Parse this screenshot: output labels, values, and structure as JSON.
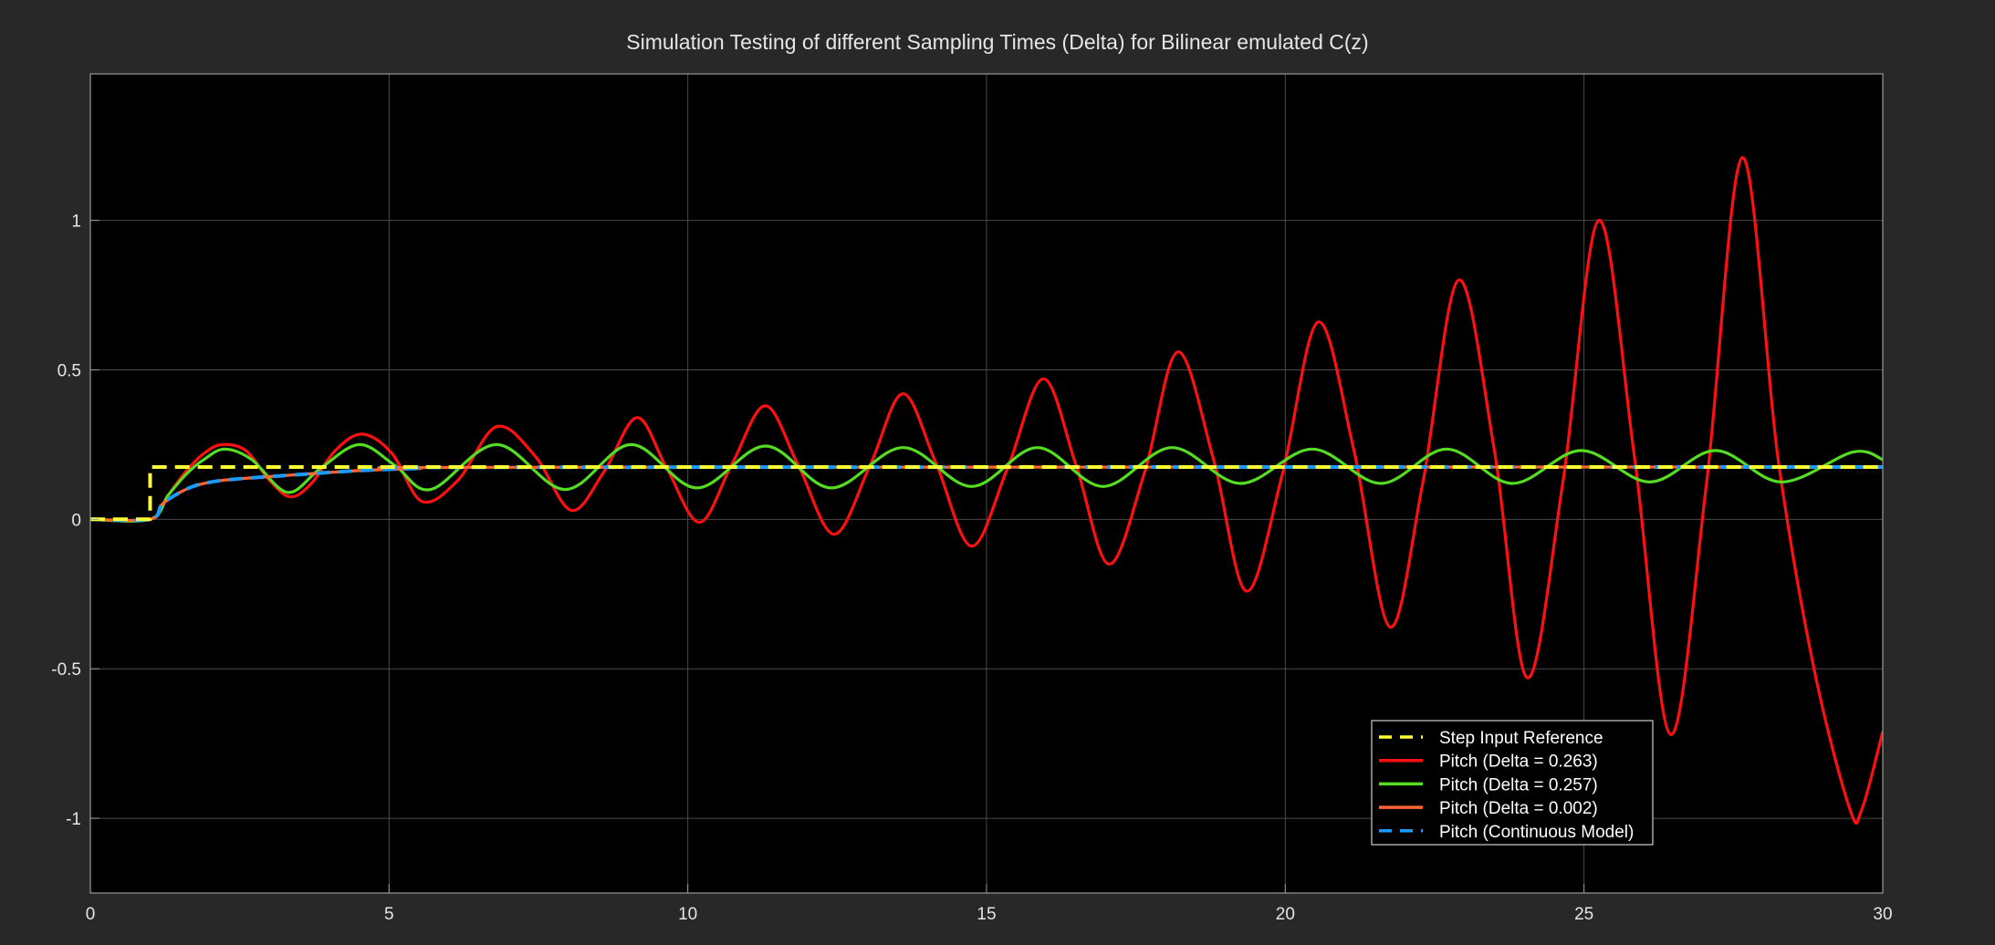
{
  "chart_data": {
    "type": "line",
    "title": "Simulation Testing of different Sampling Times (Delta) for Bilinear emulated C(z)",
    "xlabel": "",
    "ylabel": "",
    "xlim": [
      0,
      30
    ],
    "ylim": [
      -1.25,
      1.49
    ],
    "grid": true,
    "background": "#000000",
    "figure_background": "#282828",
    "legend_position": "bottom-right",
    "x_ticks": [
      0,
      5,
      10,
      15,
      20,
      25,
      30
    ],
    "x_tick_labels": [
      "0",
      "5",
      "10",
      "15",
      "20",
      "25",
      "30"
    ],
    "y_ticks": [
      -1,
      -0.5,
      0,
      0.5,
      1
    ],
    "y_tick_labels": [
      "-1",
      "-0.5",
      "0",
      "0.5",
      "1"
    ],
    "series": [
      {
        "name": "Step Input Reference",
        "color": "#ffff33",
        "style": "dashed",
        "x": [
          0,
          1,
          1,
          30
        ],
        "y": [
          0,
          0,
          0.175,
          0.175
        ]
      },
      {
        "name": "Pitch (Delta = 0.263)",
        "color": "#ff1010",
        "style": "solid",
        "x": [
          0,
          1,
          1.3,
          1.6,
          1.9,
          2.2,
          2.6,
          3.0,
          3.35,
          3.7,
          4.1,
          4.55,
          5.05,
          5.55,
          6.15,
          6.8,
          7.45,
          8.05,
          8.6,
          9.15,
          9.65,
          10.2,
          10.75,
          11.3,
          11.85,
          12.45,
          13.05,
          13.6,
          14.15,
          14.75,
          15.35,
          15.95,
          16.5,
          17.05,
          17.65,
          18.2,
          18.8,
          19.35,
          19.95,
          20.55,
          21.15,
          21.75,
          22.3,
          22.9,
          23.5,
          24.05,
          24.65,
          25.25,
          25.85,
          26.45,
          27.05,
          27.65,
          28.25,
          28.85,
          29.45,
          29.65,
          30
        ],
        "y": [
          0,
          0,
          0.08,
          0.16,
          0.22,
          0.25,
          0.23,
          0.13,
          0.075,
          0.12,
          0.23,
          0.285,
          0.22,
          0.06,
          0.13,
          0.31,
          0.21,
          0.03,
          0.16,
          0.34,
          0.17,
          -0.01,
          0.19,
          0.38,
          0.18,
          -0.05,
          0.18,
          0.42,
          0.19,
          -0.09,
          0.17,
          0.47,
          0.18,
          -0.15,
          0.16,
          0.56,
          0.2,
          -0.24,
          0.15,
          0.66,
          0.23,
          -0.36,
          0.12,
          0.8,
          0.23,
          -0.53,
          0.13,
          1.0,
          0.2,
          -0.72,
          0.12,
          1.21,
          0.2,
          -0.5,
          -0.97,
          -0.97,
          -0.71
        ]
      },
      {
        "name": "Pitch (Delta = 0.257)",
        "color": "#55dd22",
        "style": "solid",
        "x": [
          0,
          1,
          1.3,
          1.6,
          1.9,
          2.25,
          2.7,
          3.3,
          3.85,
          4.5,
          5.1,
          5.7,
          6.8,
          7.95,
          9.05,
          10.15,
          11.3,
          12.4,
          13.6,
          14.75,
          15.85,
          16.95,
          18.1,
          19.25,
          20.45,
          21.6,
          22.7,
          23.8,
          24.95,
          26.1,
          27.2,
          28.3,
          29.5,
          30
        ],
        "y": [
          0,
          0,
          0.08,
          0.15,
          0.2,
          0.235,
          0.2,
          0.09,
          0.17,
          0.25,
          0.18,
          0.1,
          0.25,
          0.1,
          0.25,
          0.105,
          0.245,
          0.105,
          0.24,
          0.11,
          0.24,
          0.11,
          0.24,
          0.12,
          0.235,
          0.12,
          0.235,
          0.12,
          0.23,
          0.125,
          0.23,
          0.125,
          0.225,
          0.2
        ]
      },
      {
        "name": "Pitch (Delta = 0.002)",
        "color": "#ff6633",
        "style": "solid",
        "x": [
          0,
          1,
          1.2,
          1.5,
          1.8,
          2.2,
          2.8,
          3.5,
          4.5,
          5.5,
          7,
          30
        ],
        "y": [
          0,
          0,
          0.05,
          0.09,
          0.115,
          0.13,
          0.14,
          0.15,
          0.163,
          0.17,
          0.174,
          0.175
        ]
      },
      {
        "name": "Pitch (Continuous Model)",
        "color": "#1a9cff",
        "style": "dashed",
        "x": [
          0,
          1,
          1.2,
          1.5,
          1.8,
          2.2,
          2.8,
          3.5,
          4.5,
          5.5,
          7,
          30
        ],
        "y": [
          0,
          0,
          0.05,
          0.09,
          0.115,
          0.13,
          0.14,
          0.15,
          0.163,
          0.17,
          0.174,
          0.175
        ]
      }
    ]
  }
}
